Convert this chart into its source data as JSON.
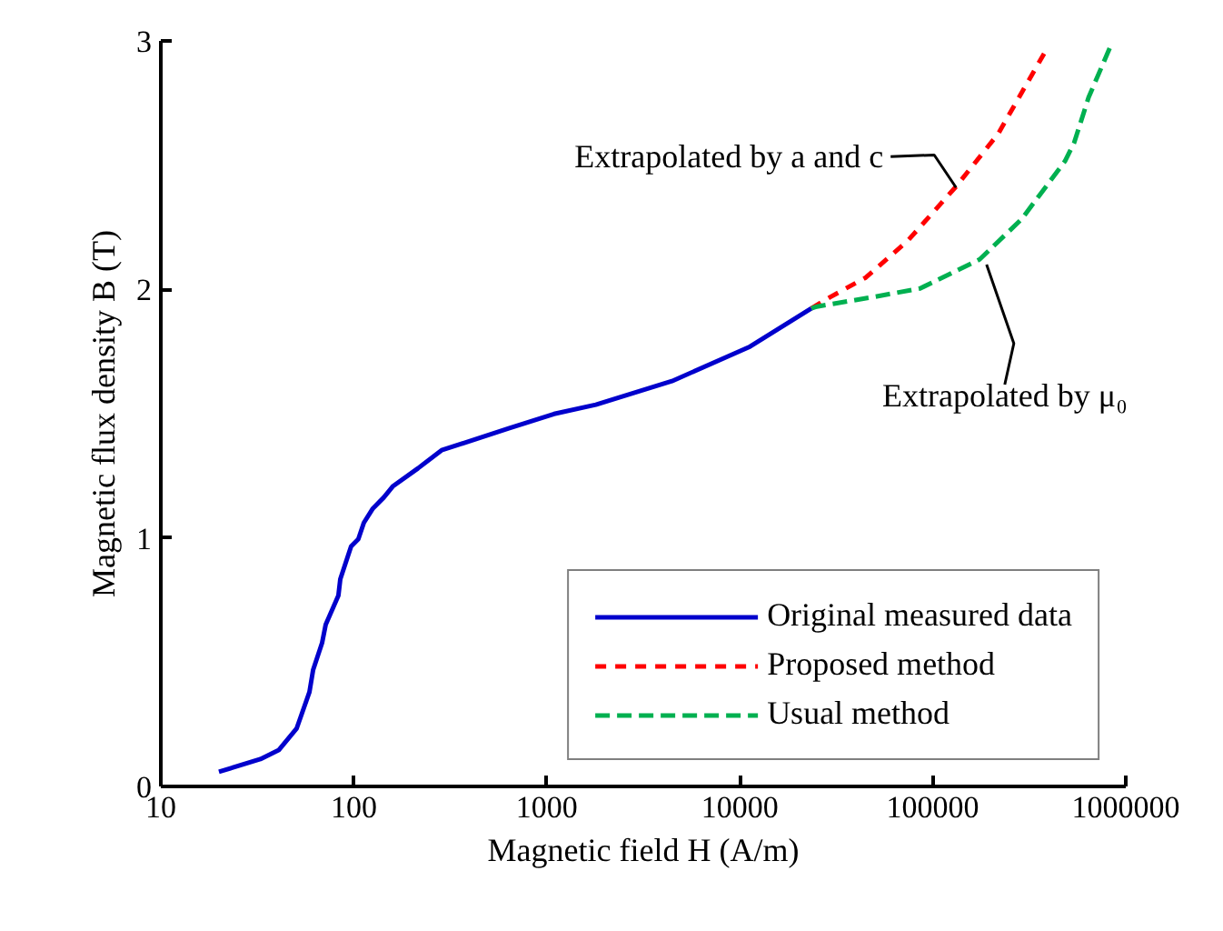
{
  "chart_data": {
    "type": "line",
    "xlabel": "Magnetic field H (A/m)",
    "ylabel": "Magnetic flux density B (T)",
    "log": "x",
    "xlim": [
      10,
      1000000
    ],
    "xticks": [
      10,
      100,
      1000,
      10000,
      100000,
      1000000
    ],
    "ylim": [
      0,
      3
    ],
    "yticks": [
      0,
      1,
      2,
      3
    ],
    "grid": false,
    "legend": "bottom right",
    "marker": "none",
    "series": [
      {
        "name": "Original measured data",
        "color": "#0000cc",
        "line_style": "solid",
        "x": [
          20.0,
          32.8,
          40.8,
          50.6,
          58.9,
          61.5,
          68.5,
          71.5,
          83.2,
          85.1,
          96.8,
          105.5,
          112.7,
          125.6,
          143,
          159,
          215,
          285,
          635,
          1090,
          1795,
          4450,
          11300,
          23500
        ],
        "values": [
          0.059,
          0.11,
          0.146,
          0.234,
          0.38,
          0.468,
          0.578,
          0.651,
          0.768,
          0.834,
          0.966,
          0.995,
          1.061,
          1.119,
          1.163,
          1.207,
          1.28,
          1.353,
          1.441,
          1.499,
          1.536,
          1.631,
          1.77,
          1.924
        ]
      },
      {
        "name": "Proposed method",
        "color": "#ff0000",
        "line_style": "dotted",
        "x": [
          23500,
          29200,
          45000,
          74000,
          132000,
          218000,
          391000
        ],
        "values": [
          1.924,
          1.968,
          2.048,
          2.195,
          2.414,
          2.626,
          2.97
        ]
      },
      {
        "name": "Usual method",
        "color": "#00b050",
        "line_style": "dashed",
        "x": [
          23500,
          25100,
          48000,
          86000,
          175000,
          288000,
          484000,
          540000,
          642000,
          832000
        ],
        "values": [
          1.924,
          1.931,
          1.968,
          2.004,
          2.121,
          2.282,
          2.516,
          2.59,
          2.773,
          2.977
        ]
      }
    ],
    "annotations": [
      {
        "text": "Extrapolated by a and c",
        "x": 132000,
        "y": 2.41
      },
      {
        "text": "Extrapolated by μ₀",
        "x": 190000,
        "y": 2.1
      }
    ]
  }
}
